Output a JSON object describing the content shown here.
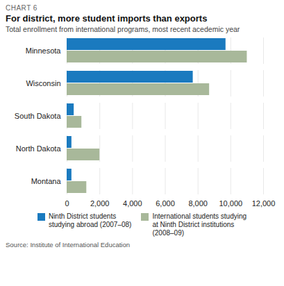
{
  "chart_data": {
    "type": "bar",
    "orientation": "horizontal",
    "title": "For district, more student imports than exports",
    "subtitle": "Total enrollment from international programs, most recent acedemic year",
    "annotations": [
      "CHART 6",
      "Source: Institute of International Education"
    ],
    "categories": [
      "Minnesota",
      "Wisconsin",
      "South Dakota",
      "North Dakota",
      "Montana"
    ],
    "series": [
      {
        "name": "Ninth District students\nstudying abroad (2007–08)",
        "color": "#1a7abf",
        "values": [
          9700,
          7700,
          430,
          290,
          290
        ]
      },
      {
        "name": "International students studying\nat Ninth District institutions\n(2008–09)",
        "color": "#a8b89a",
        "values": [
          11000,
          8700,
          900,
          2000,
          1200
        ]
      }
    ],
    "xlim": [
      0,
      12000
    ],
    "xticks": [
      0,
      {
        "value": 2000,
        "label": "2,000"
      },
      {
        "value": 4000,
        "label": "4,000"
      },
      {
        "value": 6000,
        "label": "6,000"
      },
      {
        "value": 8000,
        "label": "8,000"
      },
      {
        "value": 10000,
        "label": "10,000"
      },
      {
        "value": 12000,
        "label": "12,000"
      }
    ],
    "grid": true,
    "legend": "bottom"
  }
}
